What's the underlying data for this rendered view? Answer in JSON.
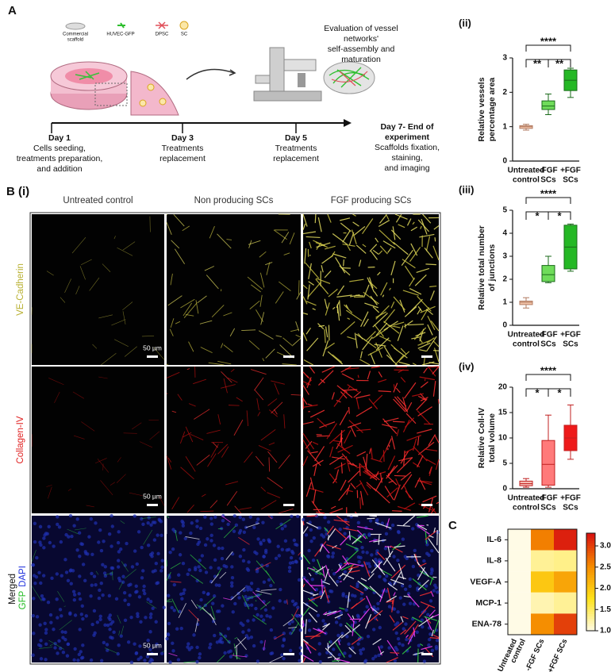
{
  "panel_a": {
    "label": "A",
    "legend_items": [
      [
        "Commercial",
        "scaffold"
      ],
      [
        "HUVEC-GFP"
      ],
      [
        "DPSC"
      ],
      [
        "SC"
      ]
    ],
    "evaluation": [
      "Evaluation of vessel",
      "networks'",
      "self-assembly and",
      "maturation"
    ],
    "timeline": [
      {
        "day": [
          "Day 1"
        ],
        "text": [
          "Cells seeding,",
          "treatments preparation,",
          "and addition"
        ]
      },
      {
        "day": [
          "Day 3"
        ],
        "text": [
          "Treatments",
          "replacement"
        ]
      },
      {
        "day": [
          "Day 5"
        ],
        "text": [
          "Treatments",
          "replacement"
        ]
      },
      {
        "day": [
          "Day 7- End of",
          "experiment"
        ],
        "text": [
          "Scaffolds fixation,",
          "staining,",
          "and imaging"
        ]
      }
    ]
  },
  "microscopy": {
    "label": "B (i)",
    "columns": [
      "Untreated control",
      "Non producing SCs",
      "FGF producing SCs"
    ],
    "rows": [
      [
        "VE-Cadherin"
      ],
      [
        "Collagen-IV"
      ],
      [
        "Merged",
        "GFP",
        "DAPI"
      ]
    ],
    "scale_bar": "50 µm"
  },
  "chart_data": [
    {
      "type": "box",
      "label": "(ii)",
      "ylabel": [
        "Relative vessels",
        "percentage area"
      ],
      "categories": [
        [
          "Untreated",
          "control"
        ],
        [
          "-FGF",
          "SCs"
        ],
        [
          "+FGF",
          "SCs"
        ]
      ],
      "boxes": [
        {
          "min": 0.9,
          "q1": 0.95,
          "median": 1.0,
          "q3": 1.03,
          "max": 1.07,
          "color": "#f5c6aa"
        },
        {
          "min": 1.35,
          "q1": 1.5,
          "median": 1.6,
          "q3": 1.75,
          "max": 1.95,
          "color": "#6fdc5a"
        },
        {
          "min": 1.85,
          "q1": 2.05,
          "median": 2.35,
          "q3": 2.65,
          "max": 2.7,
          "color": "#25b825"
        }
      ],
      "ylim": [
        0,
        3
      ],
      "yticks": [
        0,
        1,
        2,
        3
      ],
      "significance": [
        "**",
        "**",
        "****"
      ]
    },
    {
      "type": "box",
      "label": "(iii)",
      "ylabel": [
        "Relative total number",
        "of junctions"
      ],
      "categories": [
        [
          "Untreated",
          "control"
        ],
        [
          "-FGF",
          "SCs"
        ],
        [
          "+FGF",
          "SCs"
        ]
      ],
      "boxes": [
        {
          "min": 0.75,
          "q1": 0.9,
          "median": 1.0,
          "q3": 1.05,
          "max": 1.2,
          "color": "#f5c6aa"
        },
        {
          "min": 1.85,
          "q1": 1.9,
          "median": 2.2,
          "q3": 2.6,
          "max": 3.0,
          "color": "#6fdc5a"
        },
        {
          "min": 2.35,
          "q1": 2.45,
          "median": 3.4,
          "q3": 4.35,
          "max": 4.4,
          "color": "#25b825"
        }
      ],
      "ylim": [
        0,
        5
      ],
      "yticks": [
        0,
        1,
        2,
        3,
        4,
        5
      ],
      "significance": [
        "*",
        "*",
        "****"
      ]
    },
    {
      "type": "box",
      "label": "(iv)",
      "ylabel": [
        "Relative Coll-IV",
        "total volume"
      ],
      "categories": [
        [
          "Untreated",
          "control"
        ],
        [
          "-FGF",
          "SCs"
        ],
        [
          "+FGF",
          "SCs"
        ]
      ],
      "boxes": [
        {
          "min": 0.3,
          "q1": 0.6,
          "median": 1.0,
          "q3": 1.5,
          "max": 2.0,
          "color": "#f5bcb4"
        },
        {
          "min": 0.3,
          "q1": 0.7,
          "median": 4.8,
          "q3": 9.5,
          "max": 14.5,
          "color": "#ff7a7a"
        },
        {
          "min": 5.8,
          "q1": 7.5,
          "median": 10.0,
          "q3": 12.5,
          "max": 16.5,
          "color": "#ee1a1a"
        }
      ],
      "ylim": [
        0,
        20
      ],
      "yticks": [
        0,
        5,
        10,
        15,
        20
      ],
      "significance": [
        "*",
        "*",
        "****"
      ]
    },
    {
      "type": "heatmap",
      "label": "C",
      "rows": [
        "IL-6",
        "IL-8",
        "VEGF-A",
        "MCP-1",
        "ENA-78"
      ],
      "columns": [
        [
          "Untreated",
          "control"
        ],
        [
          "-FGF SCs"
        ],
        [
          "+FGF SCs"
        ]
      ],
      "values": [
        [
          1.0,
          2.6,
          3.2
        ],
        [
          1.0,
          1.3,
          1.35
        ],
        [
          1.0,
          2.0,
          2.3
        ],
        [
          1.0,
          1.2,
          1.3
        ],
        [
          1.0,
          2.5,
          3.0
        ]
      ],
      "colormap": [
        "#fffbe6",
        "#ffe21a",
        "#f58a00",
        "#d81010"
      ],
      "clim": [
        1.0,
        3.3
      ],
      "cticks": [
        {
          "value": 1.0,
          "label": "1.0"
        },
        {
          "value": 1.5,
          "label": "1.5"
        },
        {
          "value": 2.0,
          "label": "2.0"
        },
        {
          "value": 2.5,
          "label": "2.5"
        },
        {
          "value": 3.0,
          "label": "3.0"
        }
      ]
    }
  ]
}
